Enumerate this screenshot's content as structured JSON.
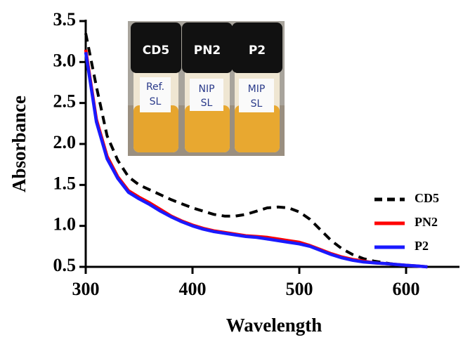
{
  "chart_data": {
    "type": "line",
    "x_label": "Wavelength",
    "y_label": "Absorbance",
    "xlim": [
      300,
      650
    ],
    "xticks": [
      300,
      400,
      500,
      600
    ],
    "ylim": [
      0.5,
      3.5
    ],
    "yticks": [
      0.5,
      {
        "value": 1,
        "label": "1.0"
      },
      1.5,
      {
        "value": 2,
        "label": "2.0"
      },
      2.5,
      {
        "value": 3,
        "label": "3.0"
      },
      3.5
    ],
    "x": [
      300,
      310,
      320,
      330,
      340,
      350,
      360,
      370,
      380,
      390,
      400,
      410,
      420,
      430,
      440,
      450,
      460,
      470,
      480,
      490,
      500,
      510,
      520,
      530,
      540,
      550,
      560,
      570,
      580,
      590,
      600,
      610,
      620
    ],
    "series": [
      {
        "name": "CD5",
        "color": "#000000",
        "style": "dashed",
        "values": [
          3.35,
          2.7,
          2.1,
          1.8,
          1.6,
          1.5,
          1.44,
          1.38,
          1.32,
          1.27,
          1.22,
          1.18,
          1.14,
          1.12,
          1.12,
          1.14,
          1.18,
          1.22,
          1.23,
          1.22,
          1.17,
          1.08,
          0.95,
          0.82,
          0.72,
          0.65,
          0.6,
          0.57,
          0.55,
          0.53,
          0.52,
          0.51,
          0.5
        ]
      },
      {
        "name": "PN2",
        "color": "#ff0000",
        "style": "solid",
        "values": [
          3.15,
          2.3,
          1.85,
          1.6,
          1.43,
          1.35,
          1.28,
          1.2,
          1.12,
          1.06,
          1.01,
          0.97,
          0.94,
          0.92,
          0.9,
          0.88,
          0.87,
          0.86,
          0.84,
          0.82,
          0.8,
          0.76,
          0.71,
          0.66,
          0.62,
          0.59,
          0.57,
          0.55,
          0.54,
          0.53,
          0.52,
          0.51,
          0.5
        ]
      },
      {
        "name": "P2",
        "color": "#1a1aff",
        "style": "solid",
        "values": [
          3.12,
          2.27,
          1.82,
          1.58,
          1.41,
          1.33,
          1.26,
          1.18,
          1.11,
          1.05,
          1.0,
          0.96,
          0.93,
          0.91,
          0.89,
          0.87,
          0.86,
          0.84,
          0.82,
          0.8,
          0.78,
          0.75,
          0.7,
          0.65,
          0.61,
          0.58,
          0.56,
          0.55,
          0.54,
          0.53,
          0.52,
          0.51,
          0.5
        ]
      }
    ],
    "inset": {
      "caps": [
        "CD5",
        "PN2",
        "P2"
      ],
      "tags": [
        [
          "Ref.",
          "SL"
        ],
        [
          "NIP",
          "SL"
        ],
        [
          "MIP",
          "SL"
        ]
      ]
    }
  }
}
